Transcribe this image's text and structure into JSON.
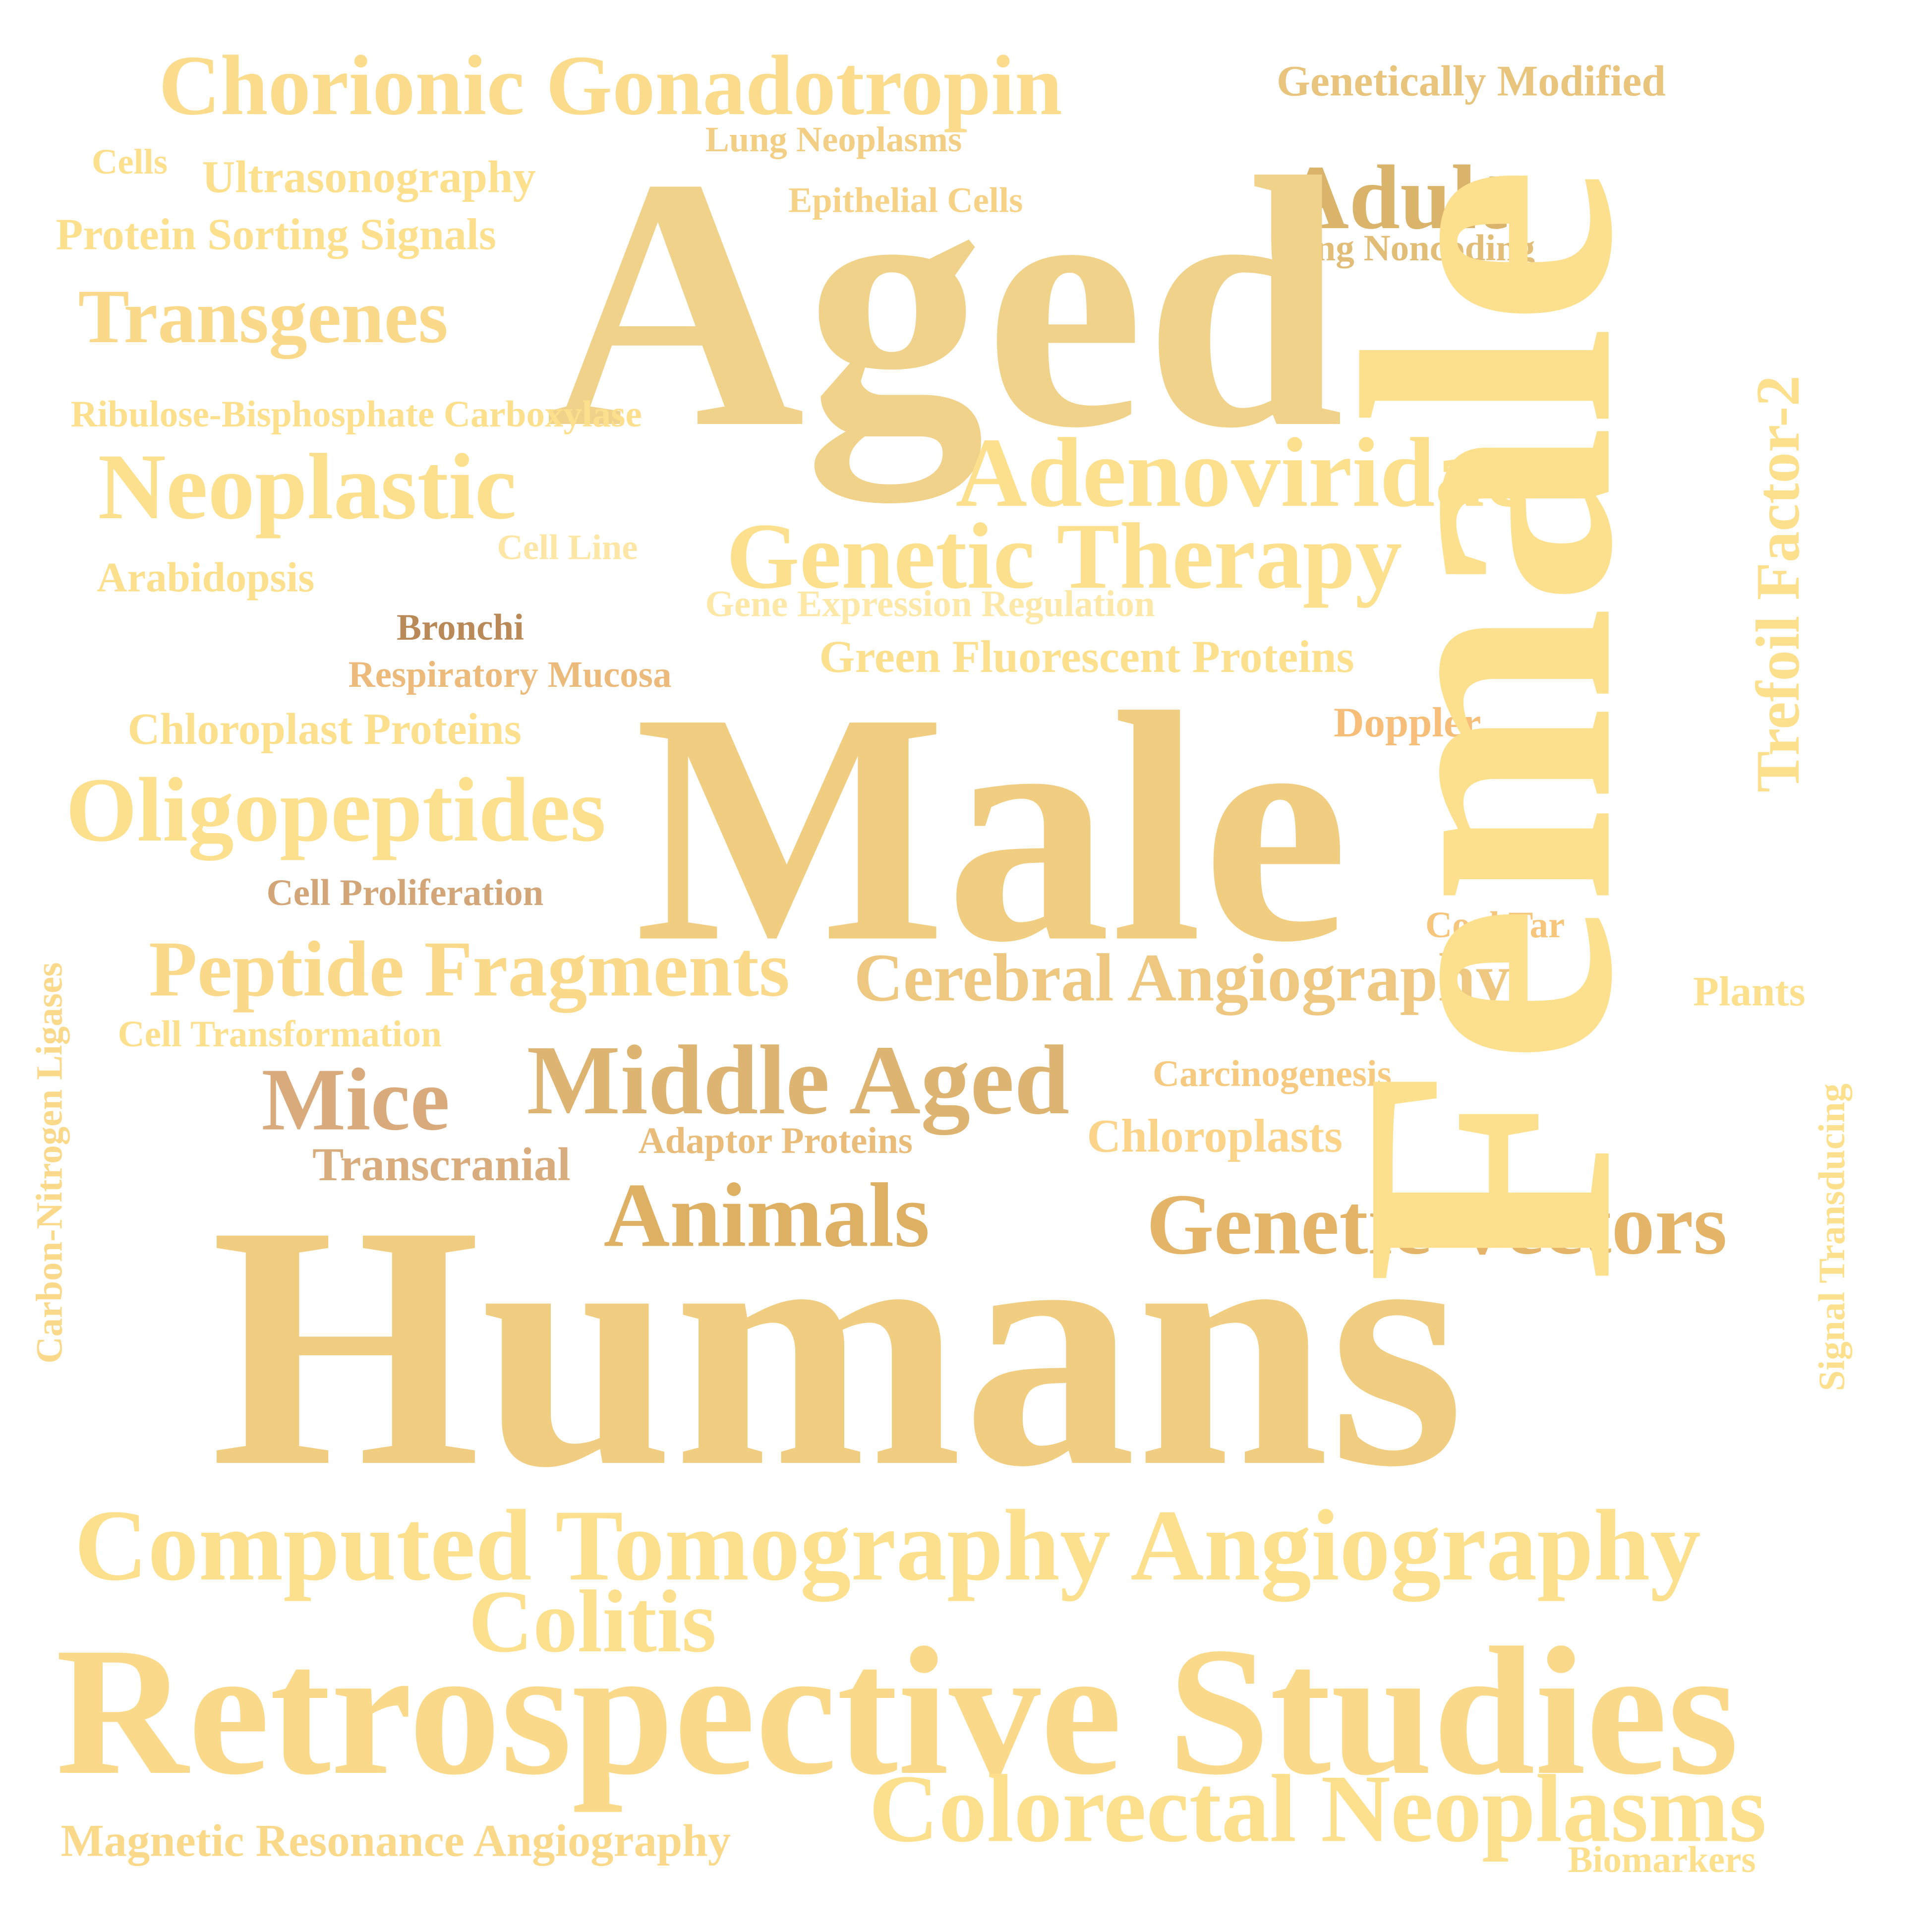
{
  "words": {
    "humans": {
      "text": "Humans",
      "color": "#f0cd80"
    },
    "retrospective_studies": {
      "text": "Retrospective Studies",
      "color": "#fbd98a"
    },
    "computed_tomography_angiography": {
      "text": "Computed Tomography Angiography",
      "color": "#fde08e"
    },
    "colorectal_neoplasms": {
      "text": "Colorectal Neoplasms",
      "color": "#fde08e"
    },
    "colitis": {
      "text": "Colitis",
      "color": "#fde08e"
    },
    "magnetic_resonance_angiography": {
      "text": "Magnetic Resonance Angiography",
      "color": "#fbd98a"
    },
    "biomarkers": {
      "text": "Biomarkers",
      "color": "#fde08e"
    },
    "male": {
      "text": "Male",
      "color": "#f0cd80"
    },
    "female": {
      "text": "Female",
      "color": "#fde08e"
    },
    "aged": {
      "text": "Aged",
      "color": "#f0d28a"
    },
    "chorionic_gonadotropin": {
      "text": "Chorionic Gonadotropin",
      "color": "#fbdb8c"
    },
    "genetically_modified": {
      "text": "Genetically Modified",
      "color": "#e8c47c"
    },
    "adult": {
      "text": "Adult",
      "color": "#d9b46a"
    },
    "long_noncoding": {
      "text": "Long Noncoding",
      "color": "#e2bd78"
    },
    "lung_neoplasms": {
      "text": "Lung Neoplasms",
      "color": "#f3cf86"
    },
    "epithelial_cells": {
      "text": "Epithelial Cells",
      "color": "#f6d287"
    },
    "cells": {
      "text": "Cells",
      "color": "#fde08e"
    },
    "ultrasonography": {
      "text": "Ultrasonography",
      "color": "#fde08e"
    },
    "protein_sorting_signals": {
      "text": "Protein Sorting Signals",
      "color": "#fde08e"
    },
    "transgenes": {
      "text": "Transgenes",
      "color": "#fbd98a"
    },
    "ribulose": {
      "text": "Ribulose-Bisphosphate Carboxylase",
      "color": "#fde08e"
    },
    "neoplastic": {
      "text": "Neoplastic",
      "color": "#fde08e"
    },
    "adenoviridae": {
      "text": "Adenoviridae",
      "color": "#fde08e"
    },
    "trefoil_factor_2": {
      "text": "Trefoil Factor-2",
      "color": "#fde08e"
    },
    "cell_line": {
      "text": "Cell Line",
      "color": "#fde6a6"
    },
    "arabidopsis": {
      "text": "Arabidopsis",
      "color": "#fde08e"
    },
    "genetic_therapy": {
      "text": "Genetic Therapy",
      "color": "#fde08e"
    },
    "gene_expression_regulation": {
      "text": "Gene Expression Regulation",
      "color": "#fde8a8"
    },
    "bronchi": {
      "text": "Bronchi",
      "color": "#b98a58"
    },
    "respiratory_mucosa": {
      "text": "Respiratory Mucosa",
      "color": "#ecba7a"
    },
    "green_fluorescent_proteins": {
      "text": "Green Fluorescent Proteins",
      "color": "#fde08e"
    },
    "chloroplast_proteins": {
      "text": "Chloroplast Proteins",
      "color": "#fde08e"
    },
    "doppler": {
      "text": "Doppler",
      "color": "#f6be78"
    },
    "oligopeptides": {
      "text": "Oligopeptides",
      "color": "#fde08e"
    },
    "cell_proliferation": {
      "text": "Cell Proliferation",
      "color": "#d2a678"
    },
    "coal_tar": {
      "text": "Coal Tar",
      "color": "#f6c67c"
    },
    "carbon_nitrogen_ligases": {
      "text": "Carbon-Nitrogen Ligases",
      "color": "#fbd98a"
    },
    "peptide_fragments": {
      "text": "Peptide Fragments",
      "color": "#fbd98a"
    },
    "cerebral_angiography": {
      "text": "Cerebral Angiography",
      "color": "#eec880"
    },
    "plants": {
      "text": "Plants",
      "color": "#fde08e"
    },
    "cell_transformation": {
      "text": "Cell Transformation",
      "color": "#fde08e"
    },
    "middle_aged": {
      "text": "Middle Aged",
      "color": "#deb472"
    },
    "carcinogenesis": {
      "text": "Carcinogenesis",
      "color": "#f6ca80"
    },
    "mice": {
      "text": "Mice",
      "color": "#d8aa7c"
    },
    "signal_transducing": {
      "text": "Signal Transducing",
      "color": "#fde08e"
    },
    "adaptor_proteins": {
      "text": "Adaptor Proteins",
      "color": "#e9bd79"
    },
    "chloroplasts": {
      "text": "Chloroplasts",
      "color": "#fbd48a"
    },
    "transcranial": {
      "text": "Transcranial",
      "color": "#d8ac7c"
    },
    "animals": {
      "text": "Animals",
      "color": "#deb064"
    },
    "genetic_vectors": {
      "text": "Genetic Vectors",
      "color": "#e4b468"
    }
  }
}
